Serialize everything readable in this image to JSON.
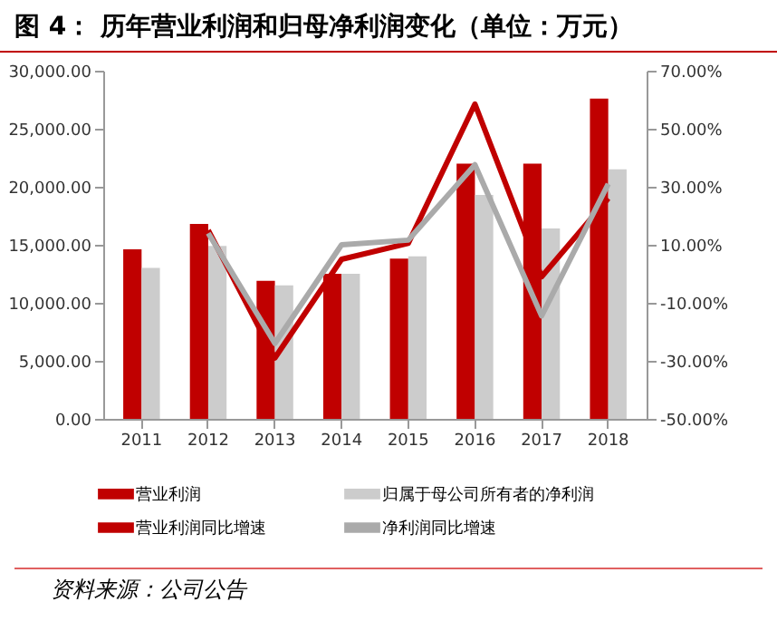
{
  "chart_data": {
    "type": "bar",
    "title": "图 4：  历年营业利润和归母净利润变化（单位：万元）",
    "categories": [
      "2011",
      "2012",
      "2013",
      "2014",
      "2015",
      "2016",
      "2017",
      "2018"
    ],
    "series": [
      {
        "name": "营业利润",
        "color": "#c00000",
        "values": [
          14600,
          16800,
          11900,
          12500,
          13800,
          22000,
          22000,
          27600
        ]
      },
      {
        "name": "归属于母公司所有者的净利润",
        "color": "#cccccc",
        "values": [
          13000,
          14900,
          11500,
          12500,
          14000,
          19300,
          16400,
          21500
        ]
      },
      {
        "name": "营业利润同比增速",
        "type": "line",
        "axis": "y2",
        "color": "#c00000",
        "values": [
          null,
          15,
          -29,
          5,
          10.5,
          58.5,
          -1,
          26
        ]
      },
      {
        "name": "净利润同比增速",
        "type": "line",
        "axis": "y2",
        "color": "#aaaaaa",
        "values": [
          null,
          14,
          -24,
          10,
          11.6,
          37.6,
          -14.5,
          31
        ]
      }
    ],
    "ylim": [
      0,
      30000
    ],
    "yticks": [
      {
        "value": 0,
        "label": "0.00"
      },
      {
        "value": 5000,
        "label": "5,000.00"
      },
      {
        "value": 10000,
        "label": "10,000.00"
      },
      {
        "value": 15000,
        "label": "15,000.00"
      },
      {
        "value": 20000,
        "label": "20,000.00"
      },
      {
        "value": 25000,
        "label": "25,000.00"
      },
      {
        "value": 30000,
        "label": "30,000.00"
      }
    ],
    "y2lim": [
      -50,
      70
    ],
    "y2ticks": [
      {
        "value": -50,
        "label": "-50.00%"
      },
      {
        "value": -30,
        "label": "-30.00%"
      },
      {
        "value": -10,
        "label": "-10.00%"
      },
      {
        "value": 10,
        "label": "10.00%"
      },
      {
        "value": 30,
        "label": "30.00%"
      },
      {
        "value": 50,
        "label": "50.00%"
      },
      {
        "value": 70,
        "label": "70.00%"
      }
    ],
    "legend": "bottom",
    "annotations": [
      "资料来源：公司公告"
    ]
  }
}
